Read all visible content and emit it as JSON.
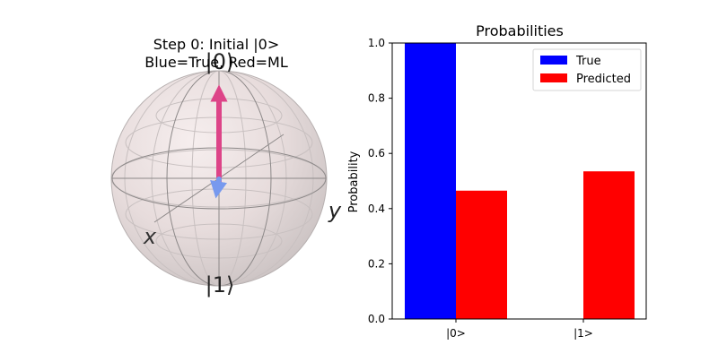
{
  "bloch": {
    "title_line1": "Step 0: Initial |0>",
    "title_line2": "Blue=True, Red=ML",
    "label_top": "|0⟩",
    "label_bottom": "|1⟩",
    "label_x": "x",
    "label_y": "y",
    "true_vector_color": "#7799ee",
    "ml_vector_color": "#dd4488"
  },
  "chart_data": {
    "type": "bar",
    "title": "Probabilities",
    "xlabel": "",
    "ylabel": "Probability",
    "categories": [
      "|0>",
      "|1>"
    ],
    "ylim": [
      0,
      1
    ],
    "yticks": [
      "0.0",
      "0.2",
      "0.4",
      "0.6",
      "0.8",
      "1.0"
    ],
    "legend_position": "top-right",
    "series": [
      {
        "name": "True",
        "color": "#0000ff",
        "values": [
          1.0,
          0.0
        ]
      },
      {
        "name": "Predicted",
        "color": "#ff0000",
        "values": [
          0.465,
          0.535
        ]
      }
    ]
  }
}
